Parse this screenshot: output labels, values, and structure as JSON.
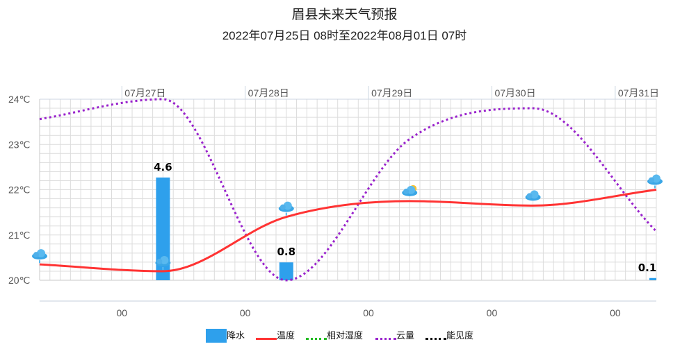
{
  "chart_data": {
    "type": "bar+line",
    "title": "眉县未来天气预报",
    "subtitle": "2022年07月25日 08时至2022年08月01日 07时",
    "x_unit": "hours from 07月26日 08时",
    "x_range": [
      0,
      120
    ],
    "date_labels": [
      {
        "label": "07月27日",
        "hour": 16
      },
      {
        "label": "07月28日",
        "hour": 40
      },
      {
        "label": "07月29日",
        "hour": 64
      },
      {
        "label": "07月30日",
        "hour": 88
      },
      {
        "label": "07月31日",
        "hour": 112
      }
    ],
    "bottom_ticks": [
      {
        "label": "00",
        "hour": 16
      },
      {
        "label": "00",
        "hour": 40
      },
      {
        "label": "00",
        "hour": 64
      },
      {
        "label": "00",
        "hour": 88
      },
      {
        "label": "00",
        "hour": 112
      }
    ],
    "yaxis": {
      "ticks": [
        "20℃",
        "21℃",
        "22℃",
        "23℃",
        "24℃"
      ],
      "ylim": [
        20,
        24
      ]
    },
    "series": [
      {
        "name": "降水",
        "type": "bar",
        "color": "#2ea0ec",
        "points": [
          [
            24,
            4.6
          ],
          [
            48,
            0.8
          ],
          [
            120,
            0.1
          ]
        ],
        "labels": [
          "4.6",
          "0.8",
          "0.1"
        ]
      },
      {
        "name": "温度",
        "type": "line",
        "color": "#ff3333",
        "points": [
          [
            0,
            20.35
          ],
          [
            24,
            20.2
          ],
          [
            48,
            21.4
          ],
          [
            72,
            21.75
          ],
          [
            96,
            21.65
          ],
          [
            120,
            22.0
          ]
        ]
      },
      {
        "name": "相对湿度",
        "type": "dotted",
        "color": "#22bb22",
        "points": []
      },
      {
        "name": "云量",
        "type": "dotted",
        "color": "#9922cc",
        "unit": "%",
        "points": [
          [
            0,
            89
          ],
          [
            24,
            100
          ],
          [
            48,
            0
          ],
          [
            72,
            78
          ],
          [
            96,
            95
          ],
          [
            120,
            27
          ]
        ]
      },
      {
        "name": "能见度",
        "type": "dotted",
        "color": "#111111",
        "points": []
      }
    ],
    "weather_icons": [
      {
        "hour": 0,
        "icon": "rain-cloud-icon"
      },
      {
        "hour": 24,
        "icon": "rain-cloud-icon"
      },
      {
        "hour": 48,
        "icon": "rain-cloud-icon"
      },
      {
        "hour": 72,
        "icon": "sun-cloud-icon"
      },
      {
        "hour": 96,
        "icon": "cloud-icon"
      },
      {
        "hour": 120,
        "icon": "rain-cloud-icon"
      }
    ],
    "grid": true,
    "legend_position": "bottom"
  }
}
